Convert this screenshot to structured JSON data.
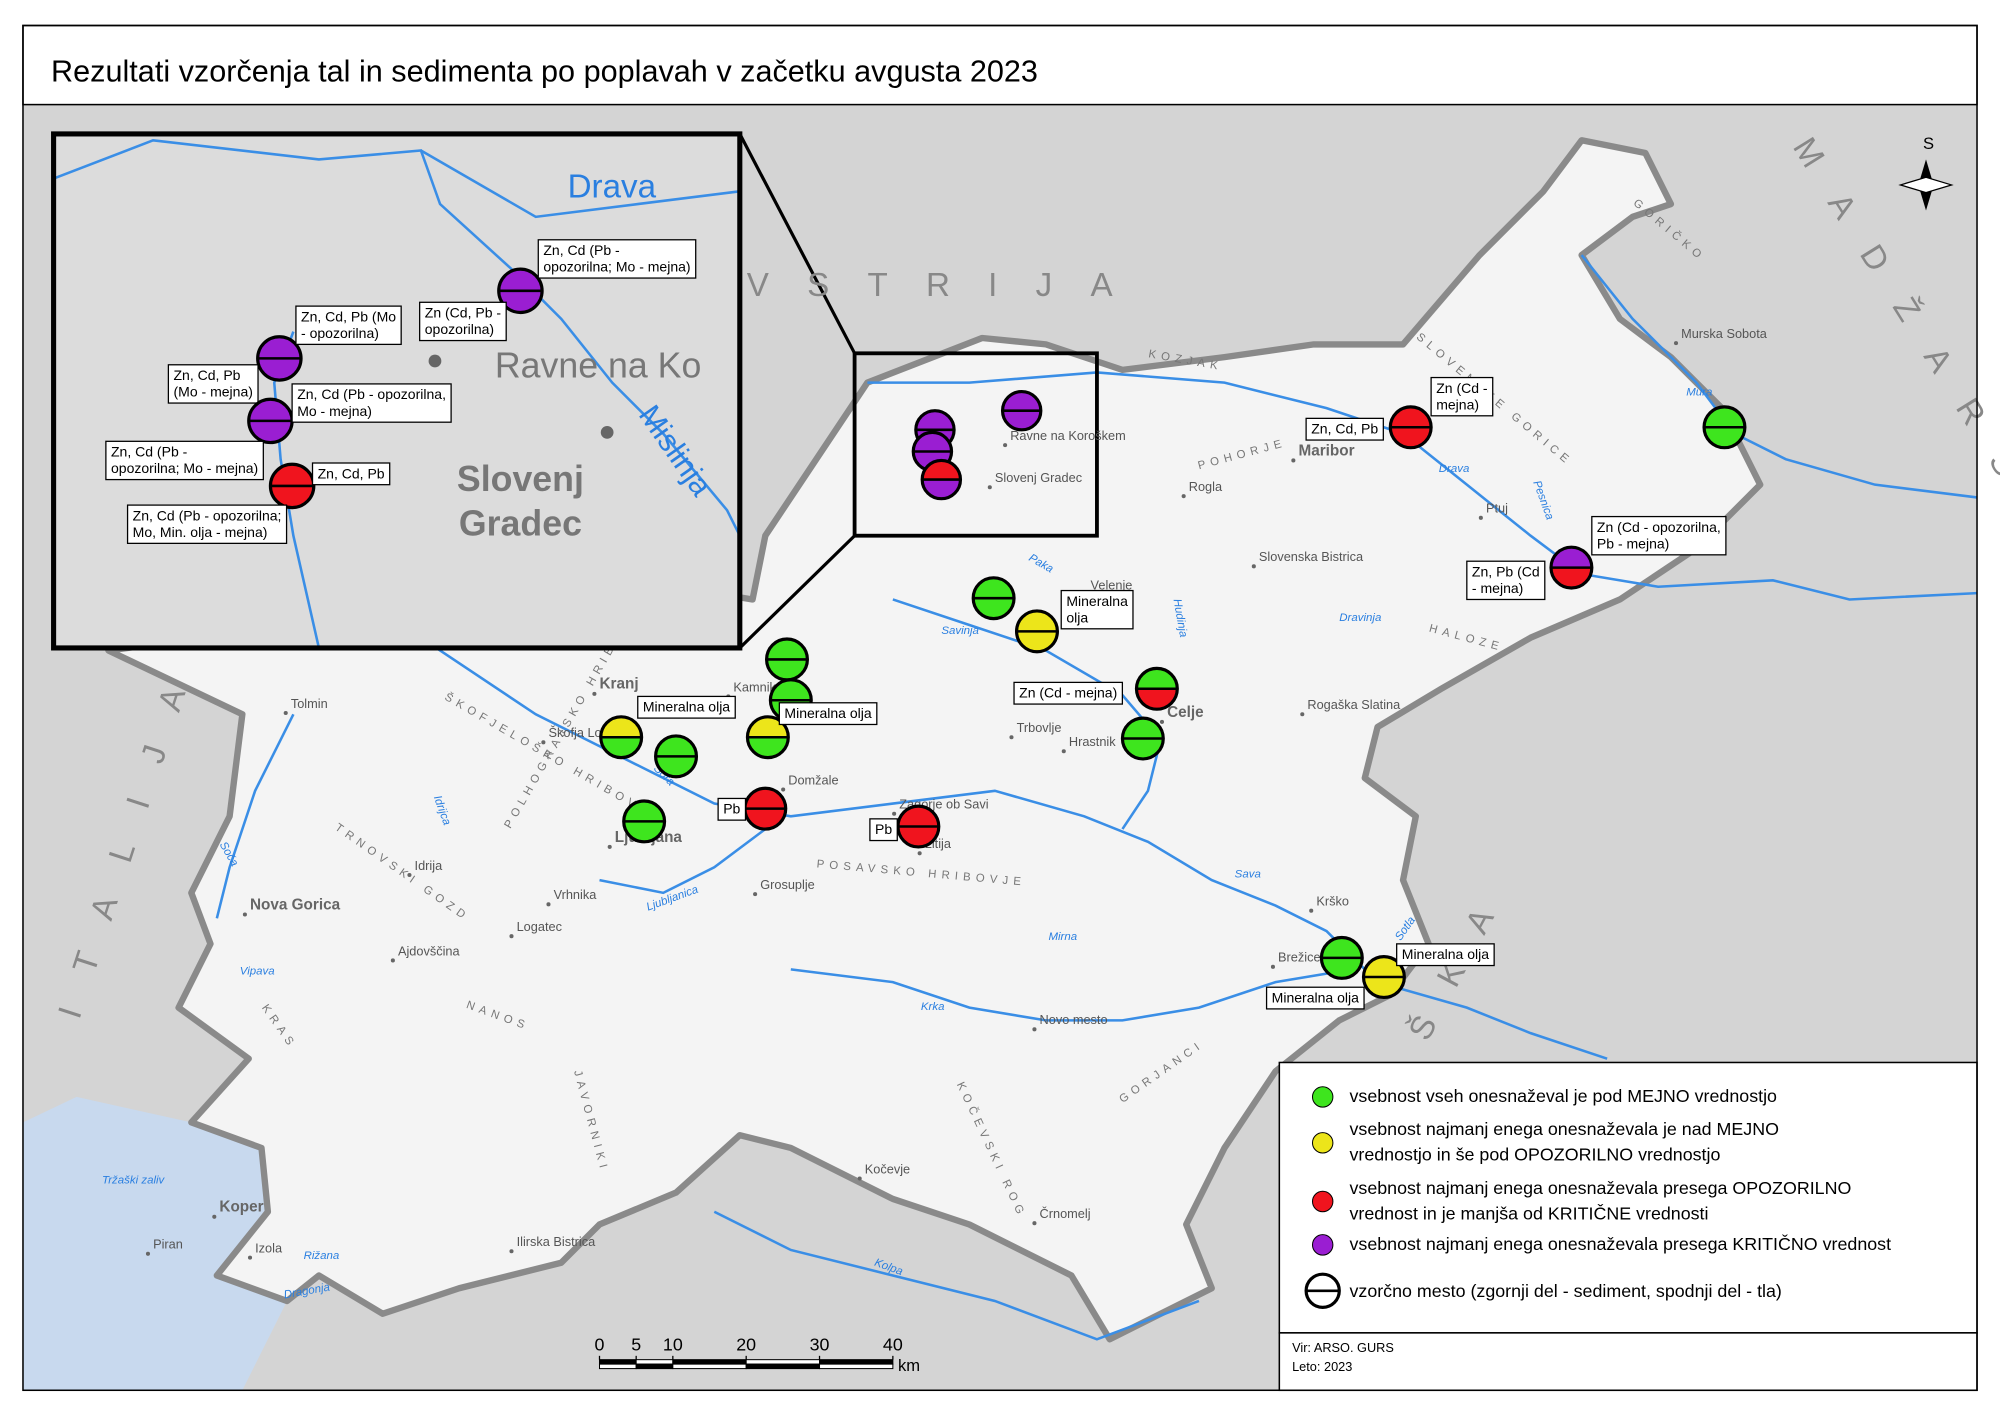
{
  "title": "Rezultati vzorčenja tal in sedimenta po poplavah v začetku avgusta 2023",
  "countries": [
    "AVSTRIJA",
    "MADŽARSKA",
    "HRVAŠKA",
    "ITALIJA"
  ],
  "cities": [
    "Maribor",
    "Murska Sobota",
    "Ptuj",
    "Celje",
    "Velenje",
    "Kranj",
    "Ljubljana",
    "Koper",
    "Nova Gorica",
    "Novo mesto",
    "Trbovlje",
    "Hrastnik",
    "Domžale",
    "Kamnik",
    "Škofja Loka",
    "Slovenska Bistrica",
    "Rogaška Slatina",
    "Krško",
    "Brežice",
    "Kočevje",
    "Črnomelj",
    "Grosuplje",
    "Logatec",
    "Vrhnika",
    "Idrija",
    "Ajdovščina",
    "Ilirska Bistrica",
    "Izola",
    "Piran",
    "Tolmin",
    "Litija",
    "Zagorje ob Savi",
    "Rogla",
    "Ravne na Koroškem",
    "Slovenj Gradec"
  ],
  "rivers": [
    "Drava",
    "Mura",
    "Sava",
    "Krka",
    "Kolpa",
    "Savinja",
    "Soča",
    "Vipava",
    "Ljubljanica",
    "Mirna",
    "Sora",
    "Idrijca",
    "Dravinja",
    "Pesnica",
    "Sotla",
    "Dragonja",
    "Rižana",
    "Paka",
    "Hudinja"
  ],
  "sea": "Tržaški zaliv",
  "regions": [
    "POHORJE",
    "SLOVENSKE GORICE",
    "HALOZE",
    "POSAVSKO HRIBOVJE",
    "KOČEVSKI ROG",
    "NANOS",
    "KRAS",
    "TRNOVSKI GOZD",
    "POLHOGRAJSKO HRIBOVJE",
    "ŠKOFJELOŠKO HRIBOVJE",
    "GORJANCI",
    "JAVORNIKI",
    "KOZJAK",
    "GORIČKO"
  ],
  "legend": {
    "items": [
      {
        "color": "#3ee51e",
        "label": [
          "vsebnost vseh onesnaževal je pod MEJNO vrednostjo"
        ]
      },
      {
        "color": "#ece51a",
        "label": [
          "vsebnost najmanj enega onesnaževala je nad MEJNO",
          "vrednostjo in še pod OPOZORILNO vrednostjo"
        ]
      },
      {
        "color": "#f0141e",
        "label": [
          "vsebnost najmanj enega onesnaževala presega OPOZORILNO",
          "vrednost in je manjša od KRITIČNE vrednosti"
        ]
      },
      {
        "color": "#9a1ed2",
        "label": [
          "vsebnost najmanj enega onesnaževala presega KRITIČNO vrednost"
        ]
      }
    ],
    "symbol": "vzorčno mesto (zgornji del - sediment, spodnji del - tla)"
  },
  "samples": [
    {
      "top": 2,
      "bottom": 2,
      "labels": [
        [
          "Zn (Cd -",
          "mejna)"
        ],
        [
          "Zn, Cd, Pb"
        ]
      ]
    },
    {
      "top": 0,
      "bottom": 0,
      "labels": []
    },
    {
      "top": 3,
      "bottom": 2,
      "labels": [
        [
          "Zn (Cd - opozorilna,",
          "Pb - mejna)"
        ],
        [
          "Zn, Pb (Cd",
          "- mejna)"
        ]
      ]
    },
    {
      "top": 0,
      "bottom": 0,
      "labels": []
    },
    {
      "top": 1,
      "bottom": 1,
      "labels": [
        [
          "Mineralna",
          "olja"
        ]
      ]
    },
    {
      "top": 0,
      "bottom": 0,
      "labels": []
    },
    {
      "top": 0,
      "bottom": 0,
      "labels": []
    },
    {
      "top": 0,
      "bottom": 2,
      "labels": [
        [
          "Zn (Cd - mejna)"
        ]
      ]
    },
    {
      "top": 1,
      "bottom": 0,
      "labels": [
        [
          "Mineralna olja"
        ]
      ]
    },
    {
      "top": 1,
      "bottom": 0,
      "labels": [
        [
          "Mineralna olja"
        ]
      ]
    },
    {
      "top": 0,
      "bottom": 0,
      "labels": []
    },
    {
      "top": 0,
      "bottom": 0,
      "labels": []
    },
    {
      "top": 0,
      "bottom": 0,
      "labels": []
    },
    {
      "top": 2,
      "bottom": 2,
      "labels": [
        [
          "Pb"
        ]
      ]
    },
    {
      "top": 2,
      "bottom": 2,
      "labels": [
        [
          "Pb"
        ]
      ]
    },
    {
      "top": 0,
      "bottom": 0,
      "labels": [
        [
          "Mineralna olja"
        ]
      ]
    },
    {
      "top": 1,
      "bottom": 1,
      "labels": [
        [
          "Mineralna olja"
        ]
      ]
    },
    {
      "top": 3,
      "bottom": 3,
      "labels": []
    },
    {
      "top": 3,
      "bottom": 3,
      "labels": []
    },
    {
      "top": 3,
      "bottom": 3,
      "labels": []
    },
    {
      "top": 2,
      "bottom": 3,
      "labels": []
    }
  ],
  "inset": {
    "labels": [
      "Drava",
      "Mislinja",
      "Ravne na Ko"
    ],
    "town": [
      "Slovenj",
      "Gradec"
    ],
    "samples": [
      {
        "top": 3,
        "bottom": 3,
        "labels": [
          [
            "Zn, Cd (Pb -",
            "opozorilna; Mo - mejna)"
          ],
          [
            "Zn (Cd, Pb -",
            "opozorilna)"
          ]
        ]
      },
      {
        "top": 3,
        "bottom": 3,
        "labels": [
          [
            "Zn, Cd, Pb (Mo",
            "- opozorilna)"
          ],
          [
            "Zn, Cd, Pb",
            "(Mo - mejna)"
          ]
        ]
      },
      {
        "top": 3,
        "bottom": 3,
        "labels": [
          [
            "Zn, Cd (Pb - opozorilna,",
            "Mo - mejna)"
          ],
          [
            "Zn, Cd (Pb -",
            "opozorilna; Mo - mejna)"
          ]
        ]
      },
      {
        "top": 2,
        "bottom": 2,
        "labels": [
          [
            "Zn, Cd, Pb"
          ],
          [
            "Zn, Cd (Pb - opozorilna;",
            "Mo, Min. olja - mejna)"
          ]
        ]
      }
    ]
  },
  "north": "S",
  "scale_bar": {
    "ticks": [
      0,
      5,
      10,
      20,
      30,
      40
    ],
    "unit": "km"
  },
  "source": [
    "Vir: ARSO. GURS",
    "Leto: 2023"
  ]
}
